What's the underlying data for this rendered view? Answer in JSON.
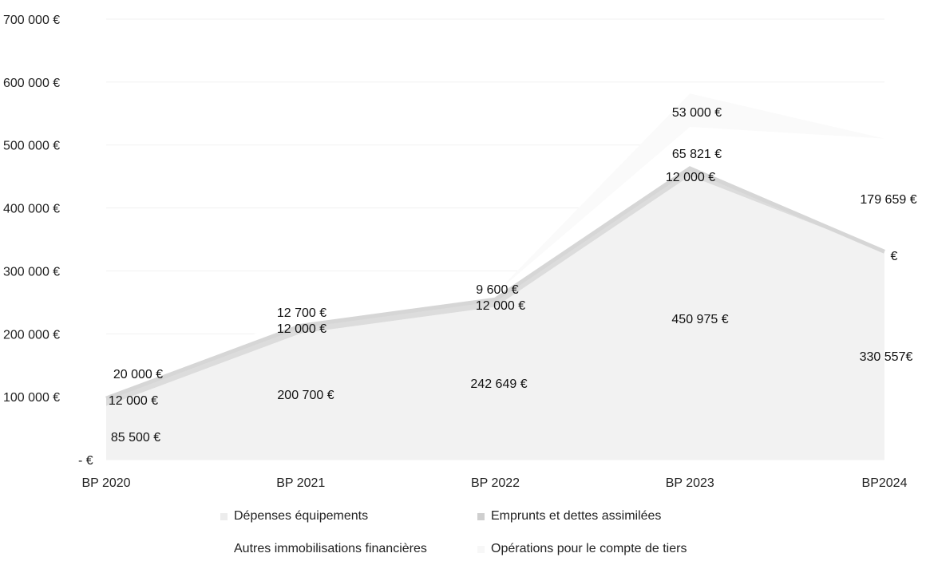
{
  "chart_data": {
    "type": "area",
    "stacked": true,
    "categories": [
      "BP 2020",
      "BP 2021",
      "BP 2022",
      "BP 2023",
      "BP2024"
    ],
    "y_tick_labels": [
      "- €",
      "100 000 €",
      "200 000 €",
      "300 000 €",
      "400 000 €",
      "500 000 €",
      "600 000 €",
      "700 000 €"
    ],
    "ylim": [
      0,
      700000
    ],
    "grid": true,
    "legend_position": "bottom",
    "series": [
      {
        "name": "Dépenses équipements",
        "values": [
          85500,
          200700,
          242649,
          450975,
          330557
        ],
        "labels": [
          "85 500 €",
          "200 700 €",
          "242 649 €",
          "450 975 €",
          "330 557€"
        ],
        "color": "#f2f2f2"
      },
      {
        "name": "Emprunts et dettes assimilées",
        "values": [
          12000,
          12000,
          12000,
          12000,
          0
        ],
        "labels": [
          "12 000 €",
          "12 000 €",
          "12 000 €",
          "12 000 €",
          "€"
        ],
        "color": "#dcdcdc"
      },
      {
        "name": "Autres immobilisations financières",
        "values": [
          20000,
          12700,
          9600,
          65821,
          179659
        ],
        "labels": [
          "20 000 €",
          "12 700 €",
          "9 600 €",
          "65 821 €",
          "179 659 €"
        ],
        "color": "#ffffff"
      },
      {
        "name": "Opérations pour le compte de tiers",
        "values": [
          0,
          0,
          0,
          53000,
          0
        ],
        "labels": [
          "",
          "",
          "",
          "53 000 €",
          ""
        ],
        "color": "#fafafa"
      }
    ]
  }
}
